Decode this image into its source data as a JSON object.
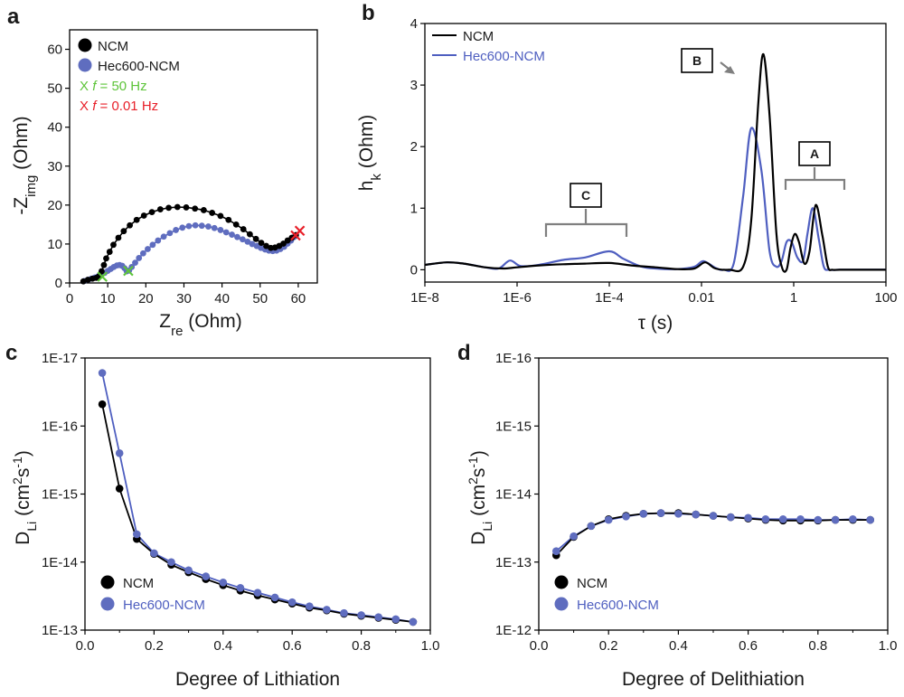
{
  "colors": {
    "ncm": "#000000",
    "hec": "#5f6dbf",
    "hec_line": "#4f5fc0",
    "green": "#5ec43a",
    "red": "#e8202a",
    "gray": "#7f7f7f"
  },
  "chart_data": [
    {
      "id": "a",
      "panel": "a",
      "type": "scatter",
      "xlim": [
        0,
        65
      ],
      "ylim": [
        0,
        65
      ],
      "xticks": [
        "0",
        "10",
        "20",
        "30",
        "40",
        "50",
        "60"
      ],
      "yticks": [
        "0",
        "10",
        "20",
        "30",
        "40",
        "50",
        "60"
      ],
      "xlabel_main": "Z",
      "xlabel_sub": "re",
      "xlabel_tail": " (Ohm)",
      "ylabel_main": "-Z",
      "ylabel_sub": "img",
      "ylabel_tail": " (Ohm)",
      "legend": [
        "NCM",
        "Hec600-NCM"
      ],
      "marker_legend": [
        {
          "symbol": "X",
          "text": "f = 50 Hz",
          "prefix": "X ",
          "italic": "f",
          "rest": " = 50 Hz"
        },
        {
          "symbol": "X",
          "text": "f = 0.01 Hz",
          "prefix": "X ",
          "italic": "f",
          "rest": " = 0.01 Hz"
        }
      ],
      "series": [
        {
          "name": "NCM",
          "x": [
            3.6,
            4.8,
            6.0,
            7.0,
            7.8,
            8.4,
            9.0,
            9.6,
            10.5,
            11.5,
            12.8,
            14.2,
            15.8,
            17.6,
            19.5,
            21.6,
            23.8,
            26.0,
            28.3,
            30.6,
            32.9,
            35.2,
            37.4,
            39.6,
            41.7,
            43.7,
            45.6,
            47.3,
            48.9,
            50.3,
            51.6,
            52.8,
            53.9,
            55.0,
            56.1,
            57.2,
            58.3,
            59.4
          ],
          "y": [
            0.4,
            0.8,
            1.1,
            1.3,
            1.8,
            3.0,
            4.6,
            6.3,
            8.0,
            9.8,
            11.6,
            13.3,
            14.8,
            16.2,
            17.3,
            18.2,
            18.9,
            19.3,
            19.5,
            19.4,
            19.1,
            18.7,
            18.0,
            17.2,
            16.2,
            15.0,
            13.8,
            12.5,
            11.3,
            10.3,
            9.5,
            9.0,
            9.1,
            9.5,
            10.1,
            10.9,
            11.6,
            12.3
          ]
        },
        {
          "name": "Hec600-NCM",
          "x": [
            3.8,
            4.8,
            5.7,
            6.6,
            7.5,
            8.3,
            9.2,
            10.0,
            10.8,
            11.6,
            12.4,
            13.1,
            13.8,
            14.4,
            15.0,
            15.6,
            16.3,
            17.2,
            18.2,
            19.3,
            20.5,
            21.8,
            23.2,
            24.7,
            26.3,
            27.9,
            29.6,
            31.3,
            33.0,
            34.7,
            36.4,
            38.0,
            39.6,
            41.1,
            42.6,
            44.0,
            45.4,
            46.7,
            47.9,
            49.1,
            50.2,
            51.3,
            52.3,
            53.3,
            54.3,
            55.3,
            56.3,
            57.2,
            58.1,
            58.9
          ],
          "y": [
            0.5,
            0.8,
            1.1,
            1.4,
            1.7,
            2.1,
            2.6,
            3.1,
            3.6,
            4.1,
            4.5,
            4.6,
            4.4,
            3.8,
            3.0,
            3.2,
            4.1,
            5.2,
            6.4,
            7.6,
            8.7,
            9.8,
            10.9,
            11.9,
            12.8,
            13.6,
            14.2,
            14.6,
            14.8,
            14.7,
            14.5,
            14.1,
            13.6,
            13.0,
            12.4,
            11.8,
            11.2,
            10.6,
            10.0,
            9.5,
            9.0,
            8.6,
            8.3,
            8.2,
            8.3,
            8.7,
            9.3,
            10.1,
            10.9,
            11.8
          ]
        }
      ],
      "markers_50Hz": [
        [
          8.6,
          1.6
        ],
        [
          15.4,
          3.1
        ]
      ],
      "markers_001Hz": [
        [
          59.3,
          12.2
        ],
        [
          60.4,
          13.4
        ]
      ]
    },
    {
      "id": "b",
      "panel": "b",
      "type": "line",
      "x_scale": "log",
      "xlim": [
        1e-08,
        100
      ],
      "ylim": [
        -0.2,
        4
      ],
      "xticks": [
        "1E-8",
        "1E-6",
        "1E-4",
        "0.01",
        "1",
        "100"
      ],
      "yticks": [
        "0",
        "1",
        "2",
        "3",
        "4"
      ],
      "xlabel": "τ (s)",
      "ylabel_main": "h",
      "ylabel_sub": "k",
      "ylabel_tail": " (Ohm)",
      "legend": [
        "NCM",
        "Hec600-NCM"
      ],
      "annotations": [
        "A",
        "B",
        "C"
      ],
      "series": [
        {
          "name": "NCM",
          "x": [
            1e-08,
            3e-08,
            7e-08,
            2e-07,
            5e-07,
            1e-06,
            3e-06,
            1e-05,
            3e-05,
            0.0001,
            0.0003,
            0.001,
            0.003,
            0.007,
            0.012,
            0.02,
            0.04,
            0.08,
            0.12,
            0.17,
            0.22,
            0.3,
            0.42,
            0.55,
            0.7,
            0.85,
            1.05,
            1.3,
            1.7,
            2.2,
            3.0,
            4.2,
            5.5,
            7,
            10,
            30,
            100
          ],
          "y": [
            0.08,
            0.12,
            0.1,
            0.04,
            0.02,
            0.04,
            0.07,
            0.09,
            0.1,
            0.11,
            0.07,
            0.04,
            0.01,
            0.02,
            0.12,
            0.02,
            0.0,
            0.05,
            0.8,
            2.7,
            3.5,
            2.5,
            0.6,
            0.05,
            0.0,
            0.35,
            0.58,
            0.45,
            0.1,
            0.3,
            1.05,
            0.55,
            0.05,
            0.0,
            0.0,
            0.0,
            0.0
          ]
        },
        {
          "name": "Hec600-NCM",
          "x": [
            1e-08,
            3e-08,
            7e-08,
            2e-07,
            4e-07,
            7e-07,
            1.2e-06,
            3e-06,
            1e-05,
            3e-05,
            0.0001,
            0.0002,
            0.0005,
            0.001,
            0.003,
            0.007,
            0.011,
            0.02,
            0.03,
            0.05,
            0.08,
            0.12,
            0.2,
            0.3,
            0.42,
            0.55,
            0.7,
            0.9,
            1.2,
            1.6,
            2.0,
            2.6,
            3.5,
            4.5,
            6,
            10,
            30,
            100
          ],
          "y": [
            0.08,
            0.12,
            0.1,
            0.04,
            0.02,
            0.15,
            0.06,
            0.08,
            0.16,
            0.2,
            0.3,
            0.18,
            0.05,
            0.02,
            0.01,
            0.05,
            0.14,
            0.03,
            0.0,
            0.1,
            1.2,
            2.3,
            1.6,
            0.3,
            0.05,
            0.15,
            0.45,
            0.45,
            0.2,
            0.15,
            0.6,
            1.0,
            0.5,
            0.05,
            0.0,
            0.0,
            0.0,
            0.0
          ]
        }
      ]
    },
    {
      "id": "c",
      "panel": "c",
      "type": "line",
      "y_scale": "log-reversed",
      "xlim": [
        0,
        1.0
      ],
      "ylim_exp": [
        -17,
        -13
      ],
      "xticks": [
        "0.0",
        "0.2",
        "0.4",
        "0.6",
        "0.8",
        "1.0"
      ],
      "yticks": [
        "1E-17",
        "1E-16",
        "1E-15",
        "1E-14",
        "1E-13"
      ],
      "xlabel": "Degree of Lithiation",
      "ylabel_main": "D",
      "ylabel_sub": "Li",
      "ylabel_tail": " (cm",
      "ylabel_sup1": "2",
      "ylabel_mid": "s",
      "ylabel_sup2": "-1",
      "ylabel_end": ")",
      "legend": [
        "NCM",
        "Hec600-NCM"
      ],
      "series": [
        {
          "name": "NCM",
          "x": [
            0.05,
            0.1,
            0.15,
            0.2,
            0.25,
            0.3,
            0.35,
            0.4,
            0.45,
            0.5,
            0.55,
            0.6,
            0.65,
            0.7,
            0.75,
            0.8,
            0.85,
            0.9,
            0.95
          ],
          "y_exp": [
            -16.32,
            -15.08,
            -14.34,
            -14.12,
            -13.96,
            -13.85,
            -13.75,
            -13.66,
            -13.58,
            -13.51,
            -13.45,
            -13.39,
            -13.33,
            -13.29,
            -13.24,
            -13.21,
            -13.18,
            -13.15,
            -13.12
          ]
        },
        {
          "name": "Hec600-NCM",
          "x": [
            0.05,
            0.1,
            0.15,
            0.2,
            0.25,
            0.3,
            0.35,
            0.4,
            0.45,
            0.5,
            0.55,
            0.6,
            0.65,
            0.7,
            0.75,
            0.8,
            0.85,
            0.9,
            0.95
          ],
          "y_exp": [
            -16.78,
            -15.6,
            -14.41,
            -14.13,
            -14.0,
            -13.88,
            -13.79,
            -13.7,
            -13.62,
            -13.55,
            -13.48,
            -13.41,
            -13.35,
            -13.3,
            -13.25,
            -13.22,
            -13.19,
            -13.16,
            -13.12
          ]
        }
      ]
    },
    {
      "id": "d",
      "panel": "d",
      "type": "line",
      "y_scale": "log-reversed",
      "xlim": [
        0,
        1.0
      ],
      "ylim_exp": [
        -16,
        -12
      ],
      "xticks": [
        "0.0",
        "0.2",
        "0.4",
        "0.6",
        "0.8",
        "1.0"
      ],
      "yticks": [
        "1E-16",
        "1E-15",
        "1E-14",
        "1E-13",
        "1E-12"
      ],
      "xlabel": "Degree of Delithiation",
      "ylabel_main": "D",
      "ylabel_sub": "Li",
      "ylabel_tail": " (cm",
      "ylabel_sup1": "2",
      "ylabel_mid": "s",
      "ylabel_sup2": "-1",
      "ylabel_end": ")",
      "legend": [
        "NCM",
        "Hec600-NCM"
      ],
      "series": [
        {
          "name": "NCM",
          "x": [
            0.05,
            0.1,
            0.15,
            0.2,
            0.25,
            0.3,
            0.35,
            0.4,
            0.45,
            0.5,
            0.55,
            0.6,
            0.65,
            0.7,
            0.75,
            0.8,
            0.85,
            0.9,
            0.95
          ],
          "y_exp": [
            -13.1,
            -13.37,
            -13.53,
            -13.63,
            -13.68,
            -13.71,
            -13.72,
            -13.72,
            -13.7,
            -13.68,
            -13.66,
            -13.64,
            -13.62,
            -13.61,
            -13.61,
            -13.61,
            -13.62,
            -13.62,
            -13.62
          ]
        },
        {
          "name": "Hec600-NCM",
          "x": [
            0.05,
            0.1,
            0.15,
            0.2,
            0.25,
            0.3,
            0.35,
            0.4,
            0.45,
            0.5,
            0.55,
            0.6,
            0.65,
            0.7,
            0.75,
            0.8,
            0.85,
            0.9,
            0.95
          ],
          "y_exp": [
            -13.16,
            -13.38,
            -13.53,
            -13.62,
            -13.67,
            -13.71,
            -13.72,
            -13.71,
            -13.7,
            -13.68,
            -13.66,
            -13.65,
            -13.63,
            -13.63,
            -13.63,
            -13.62,
            -13.62,
            -13.63,
            -13.62
          ]
        }
      ]
    }
  ]
}
